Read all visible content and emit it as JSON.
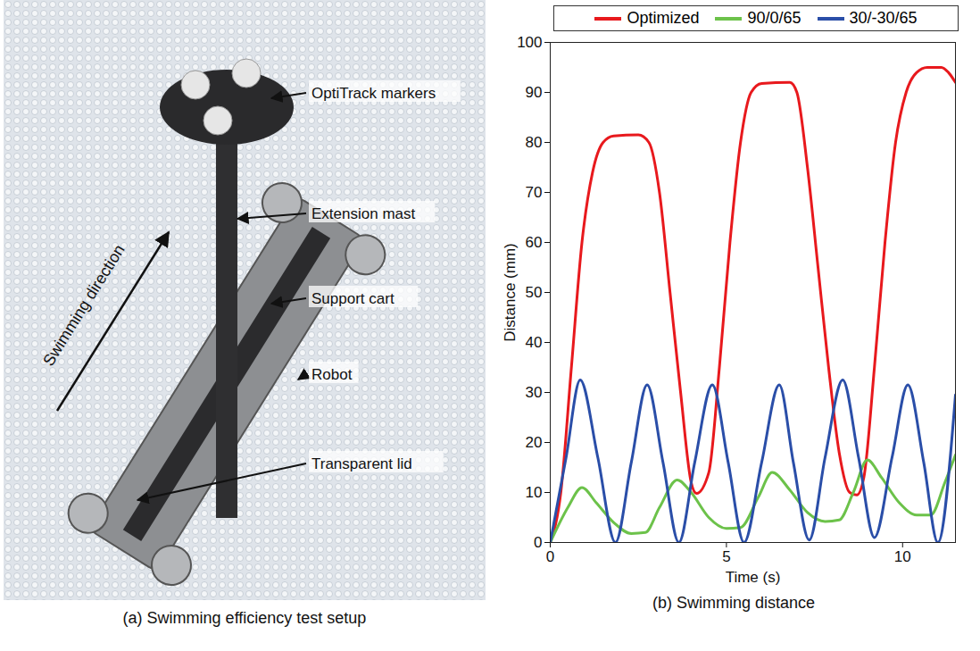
{
  "chart_data": {
    "type": "line",
    "caption": "(b) Swimming distance",
    "xlabel": "Time (s)",
    "ylabel": "Distance (mm)",
    "xlim": [
      0,
      11.5
    ],
    "ylim": [
      0,
      100
    ],
    "xticks": [
      0,
      5,
      10
    ],
    "yticks": [
      0,
      10,
      20,
      30,
      40,
      50,
      60,
      70,
      80,
      90,
      100
    ],
    "grid": false,
    "legend": "top",
    "series": [
      {
        "name": "Optimized",
        "color": "#e8191d",
        "x": [
          0,
          0.3,
          0.6,
          0.9,
          1.2,
          1.5,
          1.8,
          2.5,
          2.8,
          3.1,
          3.4,
          3.7,
          4.0,
          4.15,
          4.5,
          4.8,
          5.1,
          5.4,
          5.7,
          6.0,
          6.8,
          7.0,
          7.3,
          7.6,
          7.9,
          8.2,
          8.5,
          8.7,
          8.9,
          9.2,
          9.5,
          9.8,
          10.1,
          10.4,
          10.7,
          11.1,
          11.3,
          11.5
        ],
        "values": [
          0,
          10,
          35,
          60,
          74,
          80,
          81.3,
          81.5,
          80,
          70,
          50,
          30,
          12,
          9.8,
          14,
          35,
          60,
          80,
          90,
          91.8,
          92,
          90,
          75,
          55,
          35,
          18,
          10,
          9.5,
          13,
          35,
          60,
          80,
          90,
          94,
          95,
          95,
          94,
          92
        ]
      },
      {
        "name": "90/0/65",
        "color": "#6cc24a",
        "x": [
          0,
          0.5,
          0.9,
          1.3,
          1.8,
          2.3,
          2.7,
          3.1,
          3.6,
          4.0,
          4.5,
          5.0,
          5.4,
          5.9,
          6.3,
          6.8,
          7.3,
          7.8,
          8.2,
          8.6,
          9.0,
          9.4,
          9.9,
          10.4,
          10.8,
          11.2,
          11.5
        ],
        "values": [
          0,
          7,
          11,
          8,
          4,
          1.8,
          2,
          7,
          12.5,
          10,
          5,
          2.8,
          3,
          9,
          14,
          10.5,
          6,
          4.2,
          4.5,
          10,
          16.5,
          13,
          8,
          5.5,
          5.5,
          12,
          17.5
        ]
      },
      {
        "name": "30/-30/65",
        "color": "#2a4ea8",
        "x": [
          0,
          0.45,
          0.85,
          1.35,
          1.85,
          2.3,
          2.75,
          3.2,
          3.65,
          4.1,
          4.6,
          5.05,
          5.5,
          6.0,
          6.5,
          6.9,
          7.35,
          7.8,
          8.3,
          8.75,
          9.2,
          9.7,
          10.15,
          10.6,
          11.0,
          11.5
        ],
        "values": [
          0,
          17,
          32.5,
          17,
          0,
          16,
          31.5,
          16,
          0,
          16,
          31.5,
          16,
          0,
          16,
          31.5,
          16,
          0.5,
          17,
          32.5,
          17,
          1,
          17,
          31.5,
          16,
          0,
          29.5
        ]
      }
    ]
  },
  "figure_a": {
    "caption": "(a) Swimming efficiency test setup",
    "labels": [
      "OptiTrack markers",
      "Extension mast",
      "Support cart",
      "Robot",
      "Transparent lid"
    ],
    "direction_label": "Swimming direction"
  }
}
